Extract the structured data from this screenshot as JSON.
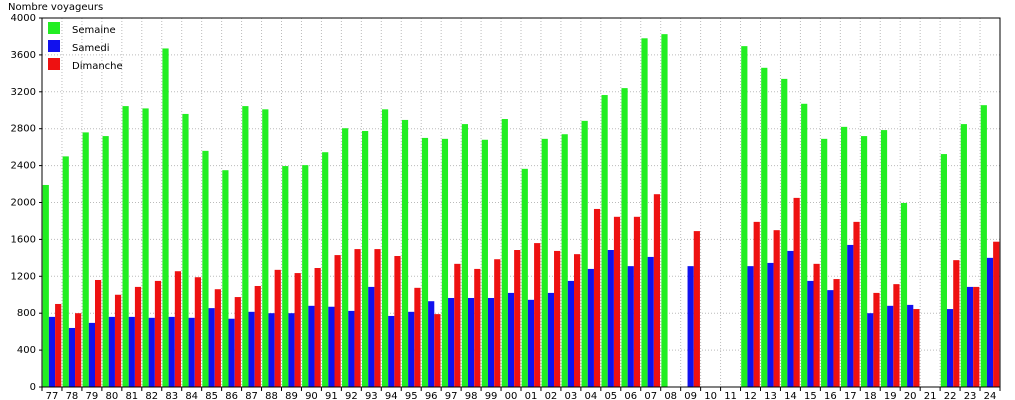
{
  "chart_data": {
    "type": "bar",
    "y_label": "Nombre voyageurs",
    "categories": [
      "77",
      "78",
      "79",
      "80",
      "81",
      "82",
      "83",
      "84",
      "85",
      "86",
      "87",
      "88",
      "89",
      "90",
      "91",
      "92",
      "93",
      "94",
      "95",
      "96",
      "97",
      "98",
      "99",
      "00",
      "01",
      "02",
      "03",
      "04",
      "05",
      "06",
      "07",
      "08",
      "09",
      "10",
      "11",
      "12",
      "13",
      "14",
      "15",
      "16",
      "17",
      "18",
      "19",
      "20",
      "21",
      "22",
      "23",
      "24"
    ],
    "series": [
      {
        "name": "Semaine",
        "color": "#22ee22",
        "values": [
          2190,
          2500,
          2760,
          2720,
          3045,
          3020,
          3670,
          2960,
          2560,
          2350,
          3045,
          3010,
          2395,
          2405,
          2545,
          2805,
          2775,
          3010,
          2895,
          2700,
          2690,
          2850,
          2680,
          2905,
          2365,
          2690,
          2740,
          2885,
          3165,
          3240,
          3780,
          3825,
          null,
          null,
          null,
          3695,
          3460,
          3340,
          3070,
          2690,
          2820,
          2720,
          2785,
          1995,
          null,
          2525,
          2850,
          3055
        ]
      },
      {
        "name": "Samedi",
        "color": "#1111ee",
        "values": [
          760,
          640,
          695,
          760,
          760,
          750,
          760,
          750,
          855,
          740,
          815,
          800,
          800,
          880,
          870,
          825,
          1085,
          770,
          815,
          930,
          965,
          965,
          965,
          1020,
          945,
          1020,
          1150,
          1280,
          1485,
          1310,
          1410,
          null,
          1310,
          null,
          null,
          1310,
          1345,
          1475,
          1150,
          1050,
          1540,
          800,
          880,
          890,
          null,
          845,
          1085,
          1400
        ]
      },
      {
        "name": "Dimanche",
        "color": "#ee1111",
        "values": [
          900,
          800,
          1160,
          1000,
          1085,
          1150,
          1255,
          1190,
          1060,
          975,
          1095,
          1270,
          1235,
          1290,
          1430,
          1495,
          1495,
          1420,
          1075,
          790,
          1335,
          1280,
          1385,
          1485,
          1560,
          1475,
          1440,
          1930,
          1845,
          1845,
          2090,
          null,
          1690,
          null,
          null,
          1790,
          1700,
          2050,
          1335,
          1170,
          1790,
          1020,
          1115,
          845,
          null,
          1375,
          1085,
          1575
        ]
      }
    ],
    "ylim": [
      0,
      4000
    ],
    "yticks": [
      0,
      400,
      800,
      1200,
      1600,
      2000,
      2400,
      2800,
      3200,
      3600,
      4000
    ],
    "grid": true,
    "legend": "upper left"
  }
}
